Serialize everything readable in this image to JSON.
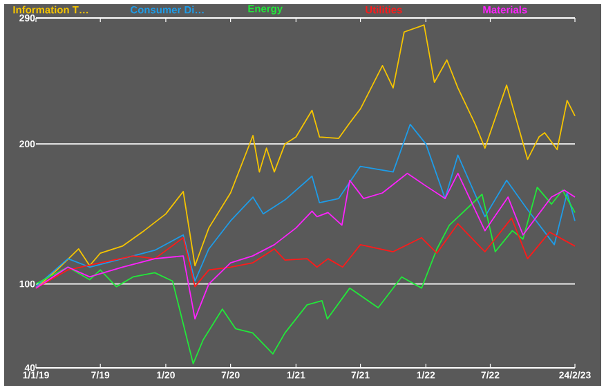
{
  "chart_data": {
    "type": "line",
    "xlim": [
      "2019-01-01",
      "2023-02-24"
    ],
    "xticks": [
      {
        "value": "2019-01-01",
        "label": "1/1/19"
      },
      {
        "value": "2019-07-01",
        "label": "7/19"
      },
      {
        "value": "2020-01-01",
        "label": "1/20"
      },
      {
        "value": "2020-07-01",
        "label": "7/20"
      },
      {
        "value": "2021-01-01",
        "label": "1/21"
      },
      {
        "value": "2021-07-01",
        "label": "7/21"
      },
      {
        "value": "2022-01-01",
        "label": "1/22"
      },
      {
        "value": "2022-07-01",
        "label": "7/22"
      },
      {
        "value": "2023-02-24",
        "label": "24/2/23"
      }
    ],
    "ylim": [
      40,
      290
    ],
    "yticks": [
      40,
      100,
      200,
      290
    ],
    "grid": "y",
    "legend": "top",
    "marker": "none",
    "line_style": "solid",
    "series": [
      {
        "name": "Information T…",
        "color": "#f5c400",
        "x": [
          "2019-01-01",
          "2019-03-01",
          "2019-05-01",
          "2019-06-01",
          "2019-07-01",
          "2019-09-01",
          "2019-11-01",
          "2020-01-01",
          "2020-02-19",
          "2020-03-23",
          "2020-05-01",
          "2020-07-01",
          "2020-09-02",
          "2020-09-20",
          "2020-10-10",
          "2020-11-01",
          "2020-12-01",
          "2021-01-01",
          "2021-02-15",
          "2021-03-08",
          "2021-05-01",
          "2021-06-01",
          "2021-07-01",
          "2021-09-01",
          "2021-10-01",
          "2021-11-01",
          "2021-12-27",
          "2022-01-25",
          "2022-03-01",
          "2022-04-01",
          "2022-05-20",
          "2022-06-16",
          "2022-08-16",
          "2022-10-14",
          "2022-11-15",
          "2022-12-01",
          "2023-01-05",
          "2023-02-02",
          "2023-02-24"
        ],
        "values": [
          97,
          110,
          125,
          113,
          122,
          127,
          138,
          150,
          166,
          113,
          140,
          165,
          206,
          180,
          197,
          180,
          200,
          205,
          224,
          205,
          204,
          215,
          225,
          256,
          240,
          280,
          285,
          244,
          260,
          240,
          214,
          197,
          242,
          189,
          205,
          208,
          196,
          231,
          220
        ]
      },
      {
        "name": "Consumer Di…",
        "color": "#1e9ce8",
        "x": [
          "2019-01-01",
          "2019-04-01",
          "2019-06-01",
          "2019-09-01",
          "2019-12-01",
          "2020-02-19",
          "2020-03-23",
          "2020-05-01",
          "2020-07-01",
          "2020-09-02",
          "2020-10-01",
          "2020-12-01",
          "2021-02-15",
          "2021-03-08",
          "2021-05-01",
          "2021-07-01",
          "2021-10-01",
          "2021-11-18",
          "2022-01-01",
          "2022-02-24",
          "2022-04-01",
          "2022-06-16",
          "2022-08-16",
          "2022-10-14",
          "2022-12-28",
          "2023-02-02",
          "2023-02-24"
        ],
        "values": [
          98,
          118,
          112,
          118,
          124,
          135,
          102,
          125,
          145,
          162,
          150,
          160,
          177,
          158,
          161,
          184,
          180,
          214,
          200,
          161,
          192,
          148,
          174,
          153,
          128,
          165,
          145
        ]
      },
      {
        "name": "Energy",
        "color": "#22e83a",
        "x": [
          "2019-01-01",
          "2019-04-01",
          "2019-06-01",
          "2019-07-01",
          "2019-08-15",
          "2019-10-01",
          "2019-12-01",
          "2020-01-20",
          "2020-03-18",
          "2020-04-15",
          "2020-06-08",
          "2020-07-15",
          "2020-09-01",
          "2020-10-28",
          "2020-12-01",
          "2021-02-01",
          "2021-03-15",
          "2021-03-30",
          "2021-06-01",
          "2021-08-20",
          "2021-10-25",
          "2021-12-20",
          "2022-02-01",
          "2022-03-08",
          "2022-06-08",
          "2022-07-15",
          "2022-09-01",
          "2022-10-01",
          "2022-11-10",
          "2022-12-20",
          "2023-01-20",
          "2023-02-24"
        ],
        "values": [
          100,
          112,
          103,
          110,
          98,
          105,
          108,
          102,
          43,
          60,
          82,
          68,
          65,
          50,
          65,
          85,
          88,
          75,
          97,
          83,
          105,
          97,
          125,
          142,
          164,
          123,
          138,
          132,
          169,
          157,
          167,
          151
        ]
      },
      {
        "name": "Utilities",
        "color": "#ff1a1a",
        "x": [
          "2019-01-01",
          "2019-04-01",
          "2019-07-01",
          "2019-10-01",
          "2019-12-01",
          "2020-02-19",
          "2020-03-23",
          "2020-05-01",
          "2020-07-01",
          "2020-09-01",
          "2020-11-01",
          "2020-12-01",
          "2021-02-01",
          "2021-03-01",
          "2021-04-01",
          "2021-05-12",
          "2021-07-01",
          "2021-10-01",
          "2021-12-20",
          "2022-02-01",
          "2022-04-01",
          "2022-06-16",
          "2022-08-30",
          "2022-10-14",
          "2022-12-15",
          "2023-02-24"
        ],
        "values": [
          97,
          110,
          115,
          120,
          118,
          133,
          98,
          110,
          112,
          115,
          125,
          117,
          118,
          112,
          118,
          112,
          128,
          123,
          133,
          122,
          143,
          123,
          147,
          118,
          137,
          127
        ]
      },
      {
        "name": "Materials",
        "color": "#ff22ff",
        "x": [
          "2019-01-01",
          "2019-04-01",
          "2019-06-01",
          "2019-09-01",
          "2019-12-01",
          "2020-02-19",
          "2020-03-23",
          "2020-05-01",
          "2020-07-01",
          "2020-09-01",
          "2020-11-01",
          "2021-01-01",
          "2021-02-15",
          "2021-03-01",
          "2021-04-01",
          "2021-05-10",
          "2021-06-01",
          "2021-07-10",
          "2021-09-01",
          "2021-11-10",
          "2022-01-01",
          "2022-02-24",
          "2022-04-01",
          "2022-06-16",
          "2022-08-20",
          "2022-10-01",
          "2022-12-20",
          "2023-01-25",
          "2023-02-24"
        ],
        "values": [
          97,
          112,
          105,
          112,
          118,
          120,
          75,
          100,
          115,
          120,
          128,
          140,
          152,
          148,
          151,
          142,
          174,
          161,
          165,
          179,
          170,
          161,
          179,
          138,
          162,
          135,
          162,
          167,
          162
        ]
      }
    ]
  }
}
